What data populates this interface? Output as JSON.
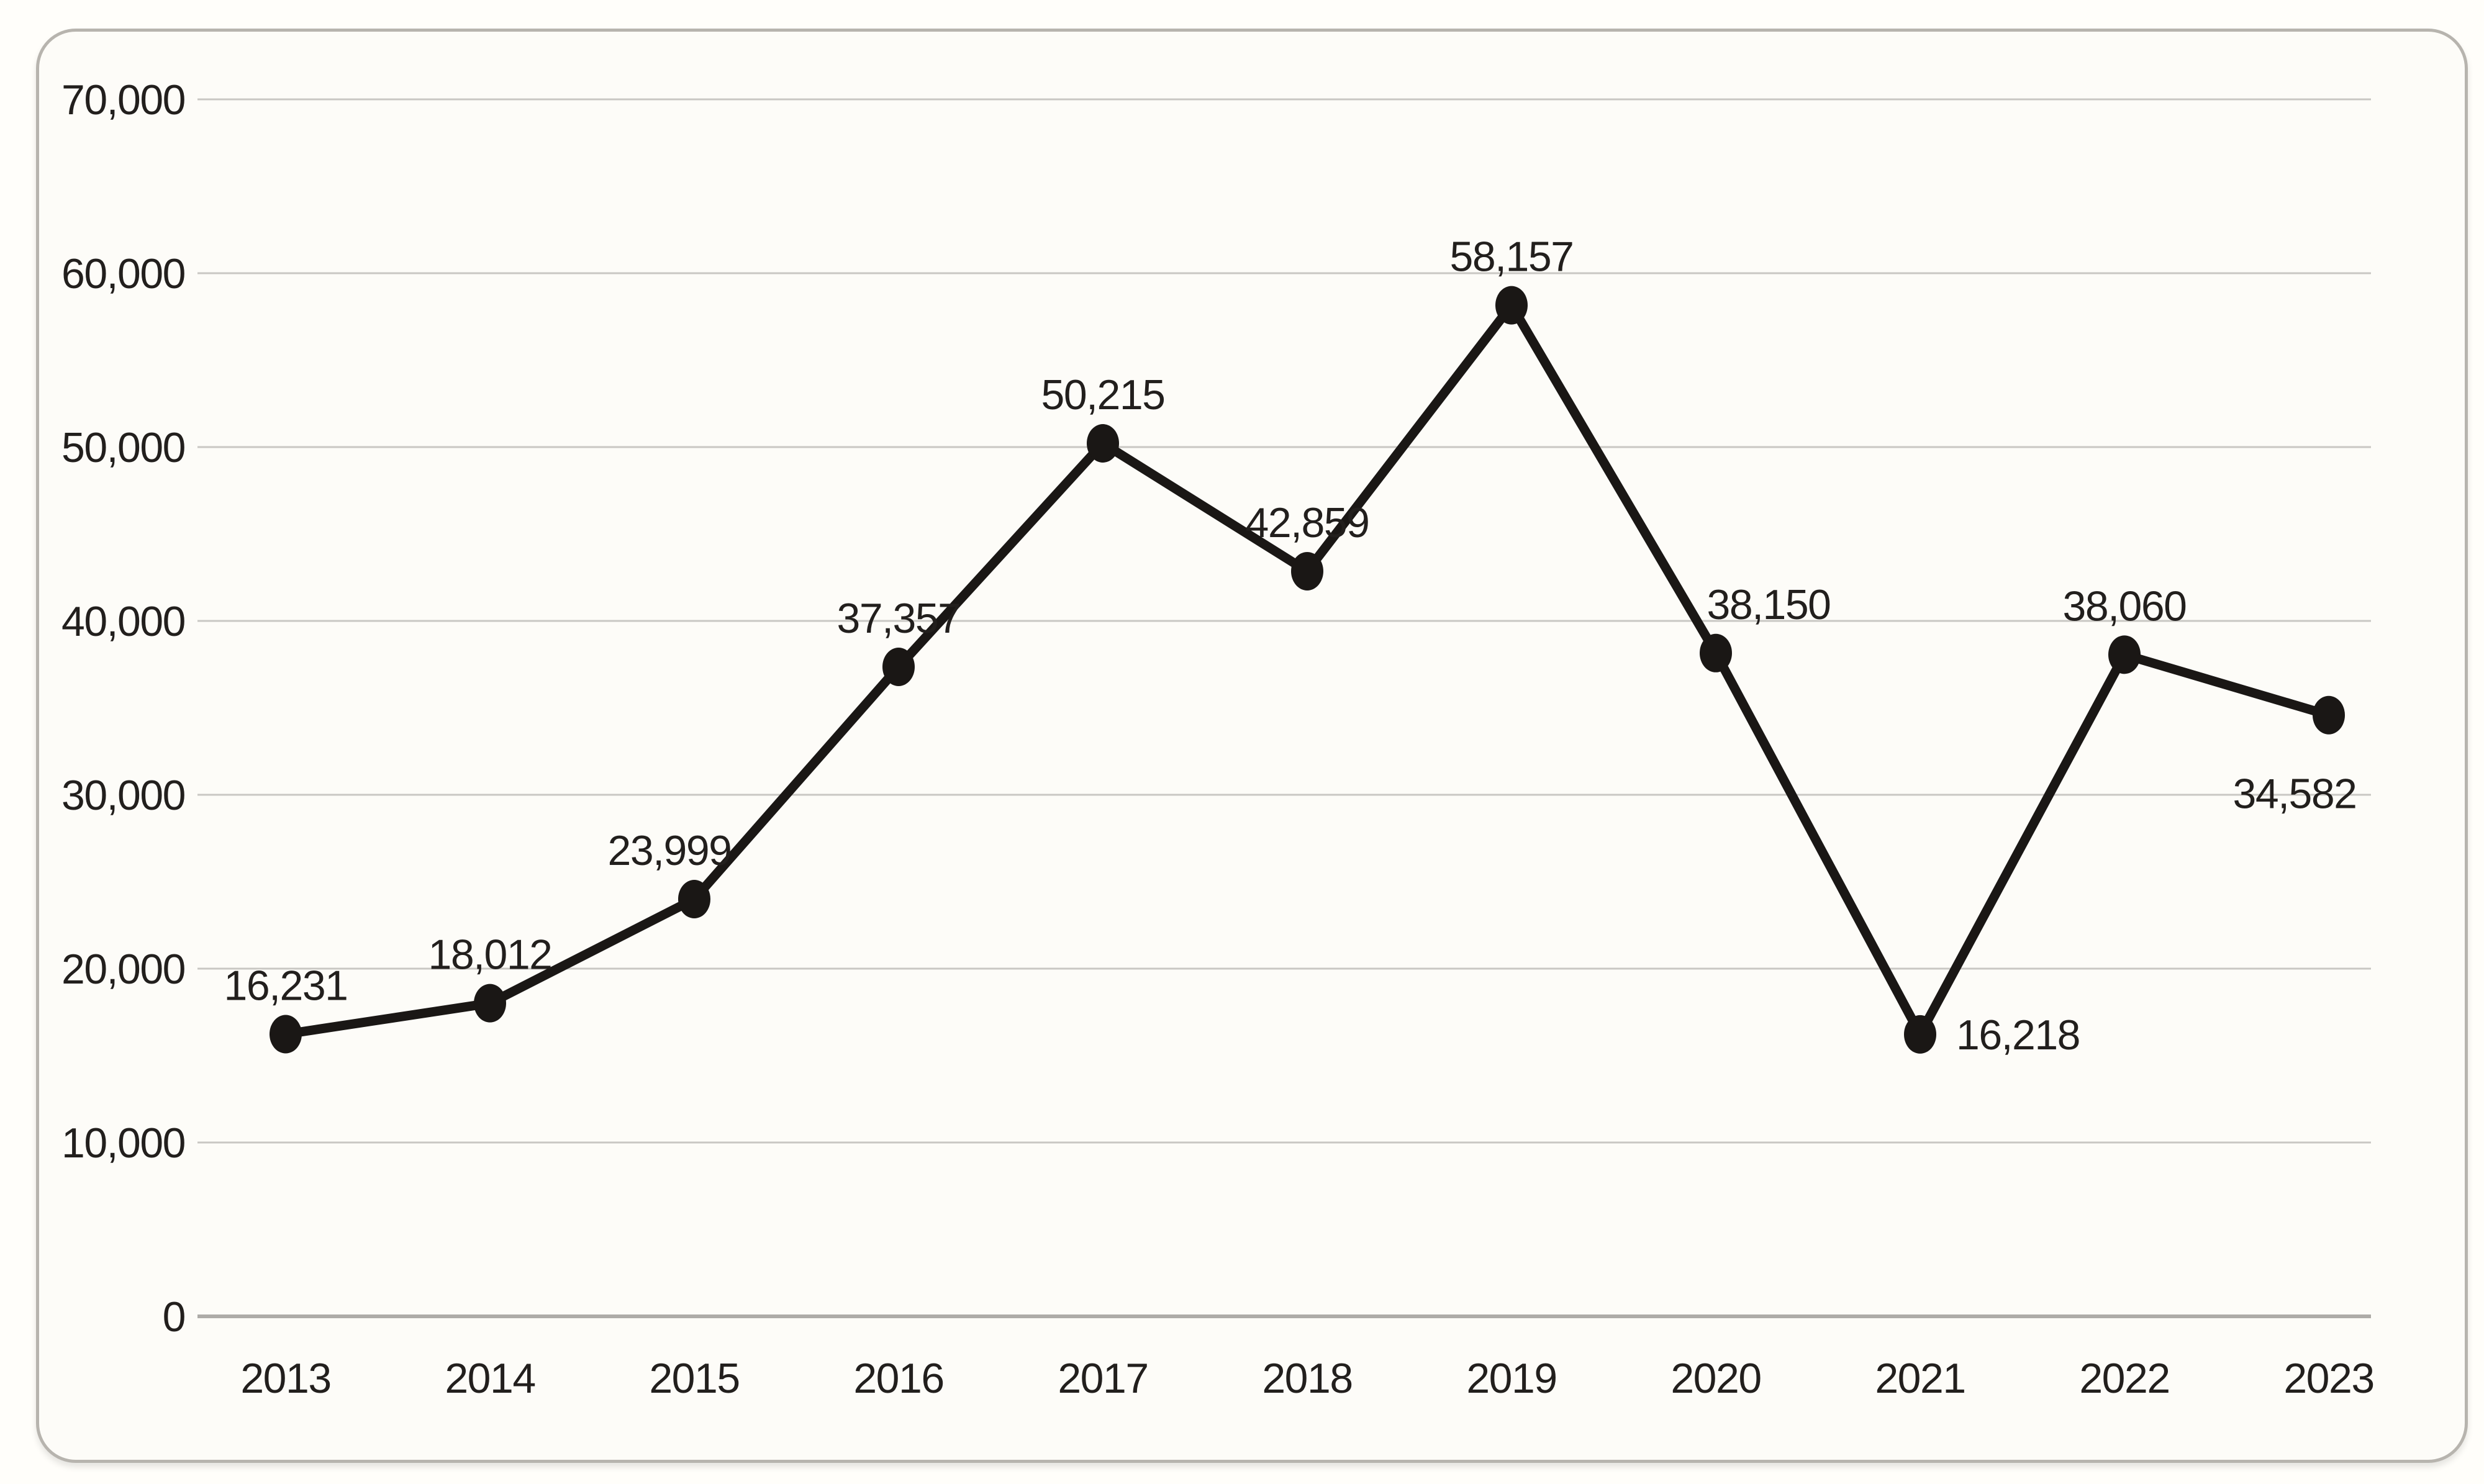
{
  "chart_data": {
    "type": "line",
    "title": "",
    "xlabel": "",
    "ylabel": "",
    "categories": [
      "2013",
      "2014",
      "2015",
      "2016",
      "2017",
      "2018",
      "2019",
      "2020",
      "2021",
      "2022",
      "2023"
    ],
    "values": [
      16231,
      18012,
      23999,
      37357,
      50215,
      42859,
      58157,
      38150,
      16218,
      38060,
      34582
    ],
    "data_labels": [
      "16,231",
      "18,012",
      "23,999",
      "37,357",
      "50,215",
      "42,859",
      "58,157",
      "38,150",
      "16,218",
      "38,060",
      "34,582"
    ],
    "label_placements": [
      "above",
      "above",
      "above-left",
      "above",
      "above",
      "above",
      "above",
      "above-right",
      "right",
      "above",
      "below"
    ],
    "ylim": [
      0,
      70000
    ],
    "ytick_interval": 10000,
    "ytick_values": [
      0,
      10000,
      20000,
      30000,
      40000,
      50000,
      60000,
      70000
    ],
    "ytick_labels": [
      "0",
      "10,000",
      "20,000",
      "30,000",
      "40,000",
      "50,000",
      "60,000",
      "70,000"
    ],
    "grid": "horizontal",
    "legend": false,
    "marker": "filled-ellipse"
  },
  "style": {
    "line_color": "#1a1715",
    "marker_color": "#1a1715",
    "text_color": "#221f1d",
    "gridline_color": "#c9c7c3",
    "baseline_color": "#aeaca8",
    "card_background": "#fdfcf8",
    "card_border": "#b7b4ae",
    "page_background": "#fffefa"
  }
}
